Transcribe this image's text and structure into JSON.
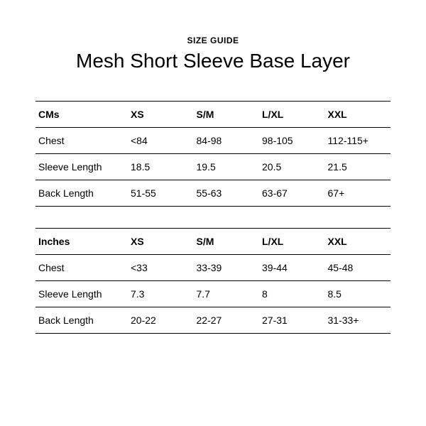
{
  "eyebrow": "SIZE GUIDE",
  "title": "Mesh Short Sleeve Base Layer",
  "tables": [
    {
      "unit_label": "CMs",
      "sizes": [
        "XS",
        "S/M",
        "L/XL",
        "XXL"
      ],
      "rows": [
        {
          "label": "Chest",
          "values": [
            "<84",
            "84-98",
            "98-105",
            "112-115+"
          ]
        },
        {
          "label": "Sleeve Length",
          "values": [
            "18.5",
            "19.5",
            "20.5",
            "21.5"
          ]
        },
        {
          "label": "Back Length",
          "values": [
            "51-55",
            "55-63",
            "63-67",
            "67+"
          ]
        }
      ]
    },
    {
      "unit_label": "Inches",
      "sizes": [
        "XS",
        "S/M",
        "L/XL",
        "XXL"
      ],
      "rows": [
        {
          "label": "Chest",
          "values": [
            "<33",
            "33-39",
            "39-44",
            "45-48"
          ]
        },
        {
          "label": "Sleeve Length",
          "values": [
            "7.3",
            "7.7",
            "8",
            "8.5"
          ]
        },
        {
          "label": "Back Length",
          "values": [
            "20-22",
            "22-27",
            "27-31",
            "31-33+"
          ]
        }
      ]
    }
  ],
  "style": {
    "background_color": "#ffffff",
    "text_color": "#000000",
    "border_color": "#000000",
    "eyebrow_fontsize": 12,
    "title_fontsize": 28,
    "cell_fontsize": 14,
    "col_widths_pct": [
      26,
      18.5,
      18.5,
      18.5,
      18.5
    ]
  }
}
